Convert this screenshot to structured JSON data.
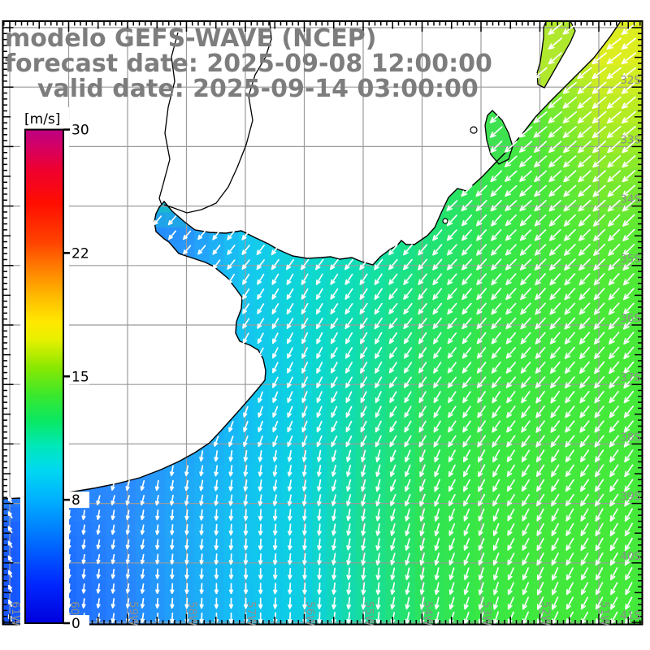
{
  "title": {
    "lines": [
      "modelo GEFS-WAVE (NCEP)",
      "forecast date: 2025-09-08 12:00:00",
      "valid date: 2025-09-14 03:00:00"
    ]
  },
  "colorbar": {
    "unit": "[m/s]",
    "tick_values": [
      0,
      8,
      15,
      22,
      30
    ],
    "gradient_stops": [
      [
        0.0,
        "#0000dc"
      ],
      [
        0.08,
        "#0028ff"
      ],
      [
        0.17,
        "#0070ff"
      ],
      [
        0.25,
        "#00b0ff"
      ],
      [
        0.31,
        "#00d8f0"
      ],
      [
        0.36,
        "#00e8b8"
      ],
      [
        0.41,
        "#0ae862"
      ],
      [
        0.46,
        "#38e82e"
      ],
      [
        0.52,
        "#8ce800"
      ],
      [
        0.575,
        "#e8f000"
      ],
      [
        0.61,
        "#ffe800"
      ],
      [
        0.66,
        "#ffbc00"
      ],
      [
        0.71,
        "#ff8800"
      ],
      [
        0.77,
        "#ff4400"
      ],
      [
        0.85,
        "#ff0e00"
      ],
      [
        0.92,
        "#ee0030"
      ],
      [
        0.965,
        "#d40064"
      ],
      [
        1.0,
        "#bc0082"
      ]
    ]
  },
  "axes": {
    "lon_labels": [
      "61W",
      "60W",
      "59W",
      "58W",
      "57W",
      "56W",
      "55W",
      "54W",
      "53W",
      "52W",
      "51W"
    ],
    "lat_labels": [
      "32S",
      "33S",
      "34S",
      "35S",
      "36S",
      "37S",
      "38S",
      "39S",
      "40S",
      "41S"
    ]
  },
  "field": {
    "comment": "11 lon cols (61W..51W) x 10 lat rows (31-32S..40-41S); colors=wave field, dirs=deg clockwise from south-pointing, speeds=arrow length px",
    "colors": [
      [
        null,
        null,
        null,
        null,
        null,
        null,
        null,
        null,
        "#2ae465",
        "#86e92c",
        "#ddee20"
      ],
      [
        null,
        null,
        null,
        null,
        null,
        null,
        null,
        "#12e28e",
        "#31e553",
        "#5fe934",
        "#b3ec23"
      ],
      [
        null,
        null,
        null,
        null,
        null,
        null,
        "#0ddfa6",
        "#1ce27c",
        "#35e64e",
        "#4ae83a",
        "#7fe92d"
      ],
      [
        null,
        null,
        "#2483ff",
        "#2794fd",
        "#15c8f2",
        "#0fd6d8",
        "#0edfb4",
        "#1ce180",
        "#30e554",
        "#42e83d",
        "#59e934"
      ],
      [
        null,
        null,
        null,
        "#2aa2fb",
        "#16c8ef",
        "#0cd8d2",
        "#10dfae",
        "#22e370",
        "#33e64e",
        "#40e83e",
        "#4ce937"
      ],
      [
        null,
        null,
        null,
        "#219ffb",
        "#14c4f1",
        "#0bd6da",
        "#12dfa6",
        "#26e368",
        "#36e64a",
        "#3fe83f",
        "#47e939"
      ],
      [
        null,
        null,
        null,
        "#2399fb",
        "#12bff4",
        "#0cd4de",
        "#15df9e",
        "#29e460",
        "#38e746",
        "#40e83e",
        "#45e93a"
      ],
      [
        null,
        null,
        "#2b8bfe",
        "#1fa8f9",
        "#12c2f2",
        "#0cd3e0",
        "#18e096",
        "#2ce45a",
        "#3ae744",
        "#41e83d",
        "#44e93b"
      ],
      [
        "#1b60ff",
        "#2176ff",
        "#2a8dfd",
        "#1fabf8",
        "#13c5f0",
        "#0dd3df",
        "#1bdf92",
        "#2ee456",
        "#3be743",
        "#42e83c",
        "#45e93a"
      ],
      [
        "#1455ff",
        "#1d6bff",
        "#2785fe",
        "#1ea7f9",
        "#12c1f2",
        "#0cd0e2",
        "#17dd9e",
        "#2ae35e",
        "#39e745",
        "#41e83d",
        "#43e93b"
      ]
    ],
    "dirs": [
      [
        45,
        45,
        45,
        45,
        45,
        45,
        45,
        45,
        48,
        50,
        52
      ],
      [
        45,
        45,
        45,
        45,
        45,
        45,
        45,
        45,
        48,
        50,
        50
      ],
      [
        42,
        42,
        42,
        42,
        42,
        40,
        42,
        45,
        45,
        48,
        48
      ],
      [
        40,
        40,
        42,
        40,
        38,
        36,
        38,
        40,
        42,
        45,
        45
      ],
      [
        32,
        34,
        38,
        36,
        32,
        30,
        34,
        38,
        40,
        42,
        42
      ],
      [
        22,
        26,
        30,
        30,
        28,
        26,
        30,
        34,
        38,
        40,
        40
      ],
      [
        12,
        16,
        20,
        22,
        20,
        22,
        26,
        30,
        34,
        36,
        38
      ],
      [
        150,
        12,
        15,
        10,
        8,
        10,
        15,
        22,
        28,
        32,
        34
      ],
      [
        150,
        8,
        10,
        5,
        3,
        5,
        10,
        16,
        22,
        28,
        30
      ],
      [
        155,
        5,
        8,
        3,
        0,
        3,
        6,
        12,
        18,
        24,
        28
      ]
    ],
    "speeds": [
      [
        18,
        18,
        18,
        18,
        18,
        18,
        18,
        18,
        19,
        20,
        21
      ],
      [
        17,
        17,
        17,
        17,
        17,
        17,
        17,
        18,
        19,
        20,
        21
      ],
      [
        16,
        16,
        16,
        16,
        16,
        16,
        16,
        17,
        18,
        19,
        20
      ],
      [
        12,
        12,
        12,
        13,
        14,
        15,
        15,
        16,
        17,
        18,
        19
      ],
      [
        12,
        12,
        13,
        13,
        14,
        14,
        15,
        16,
        17,
        18,
        18
      ],
      [
        12,
        12,
        12,
        12,
        13,
        14,
        15,
        15,
        16,
        17,
        18
      ],
      [
        11,
        11,
        12,
        12,
        13,
        14,
        14,
        15,
        16,
        17,
        17
      ],
      [
        9,
        11,
        12,
        12,
        13,
        13,
        14,
        15,
        16,
        16,
        17
      ],
      [
        8,
        11,
        11,
        12,
        13,
        13,
        14,
        15,
        15,
        16,
        17
      ],
      [
        8,
        11,
        11,
        12,
        12,
        13,
        14,
        14,
        15,
        16,
        16
      ]
    ]
  },
  "geo": {
    "land": [
      [
        3.5,
        26
      ],
      [
        764,
        26
      ],
      [
        751,
        45
      ],
      [
        731,
        71
      ],
      [
        712,
        90
      ],
      [
        695,
        107
      ],
      [
        676,
        126
      ],
      [
        659,
        144
      ],
      [
        645,
        162
      ],
      [
        630,
        180
      ],
      [
        611,
        199
      ],
      [
        594,
        217
      ],
      [
        574,
        235
      ],
      [
        563,
        232
      ],
      [
        552,
        243
      ],
      [
        543,
        262
      ],
      [
        535,
        280
      ],
      [
        526,
        290
      ],
      [
        510,
        301
      ],
      [
        500,
        301
      ],
      [
        494,
        296
      ],
      [
        489,
        302
      ],
      [
        480,
        307
      ],
      [
        468,
        316
      ],
      [
        459,
        326
      ],
      [
        445,
        322
      ],
      [
        433,
        317
      ],
      [
        418,
        319
      ],
      [
        407,
        316
      ],
      [
        395,
        317
      ],
      [
        378,
        318
      ],
      [
        360,
        315
      ],
      [
        342,
        307
      ],
      [
        330,
        300
      ],
      [
        313,
        292
      ],
      [
        297,
        284
      ],
      [
        278,
        287
      ],
      [
        258,
        286
      ],
      [
        240,
        283
      ],
      [
        227,
        273
      ],
      [
        212,
        260
      ],
      [
        202,
        248
      ],
      [
        196,
        255
      ],
      [
        192,
        263
      ],
      [
        190,
        273
      ],
      [
        192,
        285
      ],
      [
        202,
        294
      ],
      [
        208,
        298
      ],
      [
        214,
        305
      ],
      [
        220,
        312
      ],
      [
        235,
        317
      ],
      [
        253,
        323
      ],
      [
        263,
        328
      ],
      [
        280,
        342
      ],
      [
        290,
        355
      ],
      [
        298,
        366
      ],
      [
        297,
        380
      ],
      [
        291,
        396
      ],
      [
        290,
        410
      ],
      [
        295,
        420
      ],
      [
        308,
        425
      ],
      [
        318,
        431
      ],
      [
        324,
        442
      ],
      [
        327,
        456
      ],
      [
        326,
        468
      ],
      [
        317,
        479
      ],
      [
        305,
        493
      ],
      [
        290,
        510
      ],
      [
        272,
        530
      ],
      [
        258,
        545
      ],
      [
        240,
        557
      ],
      [
        220,
        568
      ],
      [
        198,
        578
      ],
      [
        172,
        588
      ],
      [
        145,
        595
      ],
      [
        115,
        601
      ],
      [
        85,
        606
      ],
      [
        55,
        610
      ],
      [
        25,
        613
      ],
      [
        3.5,
        614
      ]
    ],
    "rivers": [
      [
        [
          332,
          26
        ],
        [
          334,
          48
        ],
        [
          327,
          70
        ],
        [
          314,
          92
        ],
        [
          306,
          118
        ],
        [
          311,
          148
        ],
        [
          303,
          178
        ],
        [
          292,
          206
        ],
        [
          281,
          230
        ],
        [
          266,
          250
        ],
        [
          248,
          258
        ],
        [
          230,
          262
        ],
        [
          214,
          256
        ],
        [
          202,
          252
        ]
      ],
      [
        [
          219,
          40
        ],
        [
          211,
          70
        ],
        [
          215,
          100
        ],
        [
          207,
          132
        ],
        [
          203,
          164
        ],
        [
          209,
          196
        ],
        [
          201,
          226
        ],
        [
          196,
          244
        ],
        [
          199,
          252
        ]
      ]
    ],
    "lagoons": [
      {
        "fill": "#b0e82e",
        "pts": [
          [
            672,
            26
          ],
          [
            702,
            26
          ],
          [
            708,
            38
          ],
          [
            702,
            52
          ],
          [
            694,
            66
          ],
          [
            686,
            80
          ],
          [
            678,
            94
          ],
          [
            670,
            108
          ],
          [
            662,
            104
          ],
          [
            661,
            90
          ],
          [
            665,
            76
          ],
          [
            667,
            62
          ],
          [
            669,
            46
          ],
          [
            669,
            34
          ]
        ]
      },
      {
        "fill": "#3ee251",
        "pts": [
          [
            606,
            136
          ],
          [
            618,
            148
          ],
          [
            626,
            164
          ],
          [
            631,
            180
          ],
          [
            626,
            196
          ],
          [
            614,
            202
          ],
          [
            604,
            190
          ],
          [
            599,
            172
          ],
          [
            597,
            154
          ],
          [
            600,
            142
          ]
        ]
      }
    ],
    "ponds": [
      [
        583,
        160,
        4
      ],
      [
        548,
        272,
        3
      ]
    ]
  }
}
